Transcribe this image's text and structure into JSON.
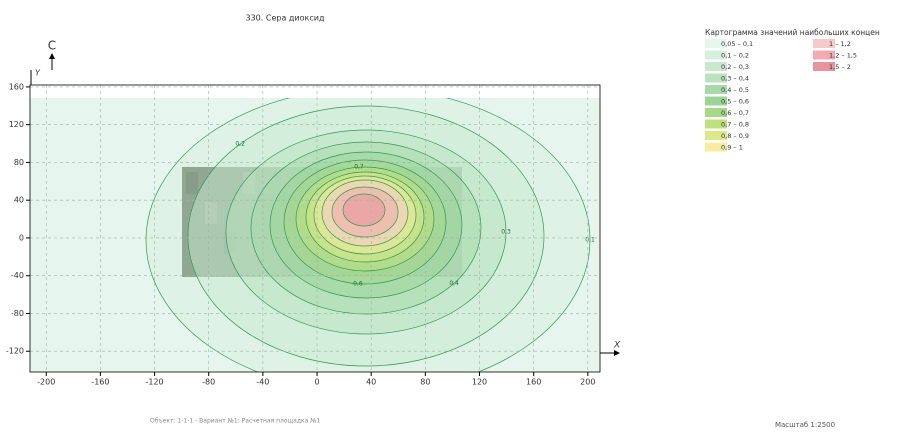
{
  "title": "330. Сера диоксид",
  "north": "С",
  "map": {
    "xlabel": "X",
    "ylabel": "Y",
    "xlim": [
      -212,
      209
    ],
    "ylim": [
      -142,
      162
    ],
    "xticks": [
      -200,
      -160,
      -120,
      -80,
      -40,
      0,
      40,
      80,
      120,
      160,
      200
    ],
    "yticks": [
      -120,
      -80,
      -40,
      0,
      40,
      80,
      120,
      160
    ],
    "contours": [
      {
        "level": 0.1,
        "label": "0,1"
      },
      {
        "level": 0.2,
        "label": "0,2"
      },
      {
        "level": 0.3,
        "label": "0,3"
      },
      {
        "level": 0.4,
        "label": "0,4"
      },
      {
        "level": 0.5
      },
      {
        "level": 0.6,
        "label": "0,6"
      },
      {
        "level": 0.7,
        "label": "0,7"
      },
      {
        "level": 0.8
      },
      {
        "level": 0.9
      },
      {
        "level": 1
      },
      {
        "level": 1.2
      },
      {
        "level": 1.5
      }
    ]
  },
  "legend": {
    "title": "Картограмма значений наибольших концен",
    "items": [
      {
        "label": "0,05 – 0,1",
        "color": "#e6f5ee"
      },
      {
        "label": "0,1 – 0,2",
        "color": "#d6efdc"
      },
      {
        "label": "0,2 – 0,3",
        "color": "#c8e9cf"
      },
      {
        "label": "0,3 – 0,4",
        "color": "#b9e2bd"
      },
      {
        "label": "0,4 – 0,5",
        "color": "#a8daa9"
      },
      {
        "label": "0,5 – 0,6",
        "color": "#9cd497"
      },
      {
        "label": "0,6 – 0,7",
        "color": "#a6d888"
      },
      {
        "label": "0,7 – 0,8",
        "color": "#bfe07e"
      },
      {
        "label": "0,8 – 0,9",
        "color": "#dbe98b"
      },
      {
        "label": "0,9 – 1",
        "color": "#f6eca2"
      },
      {
        "label": "1 – 1,2",
        "color": "#f6caca"
      },
      {
        "label": "1,2 – 1,5",
        "color": "#f0aab0"
      },
      {
        "label": "1,5 – 2",
        "color": "#e8949c"
      }
    ]
  },
  "footer": {
    "object": "Объект: 1-1-1 - Вариант №1: Расчетная площадка №1",
    "scale": "Масштаб 1:2500"
  }
}
